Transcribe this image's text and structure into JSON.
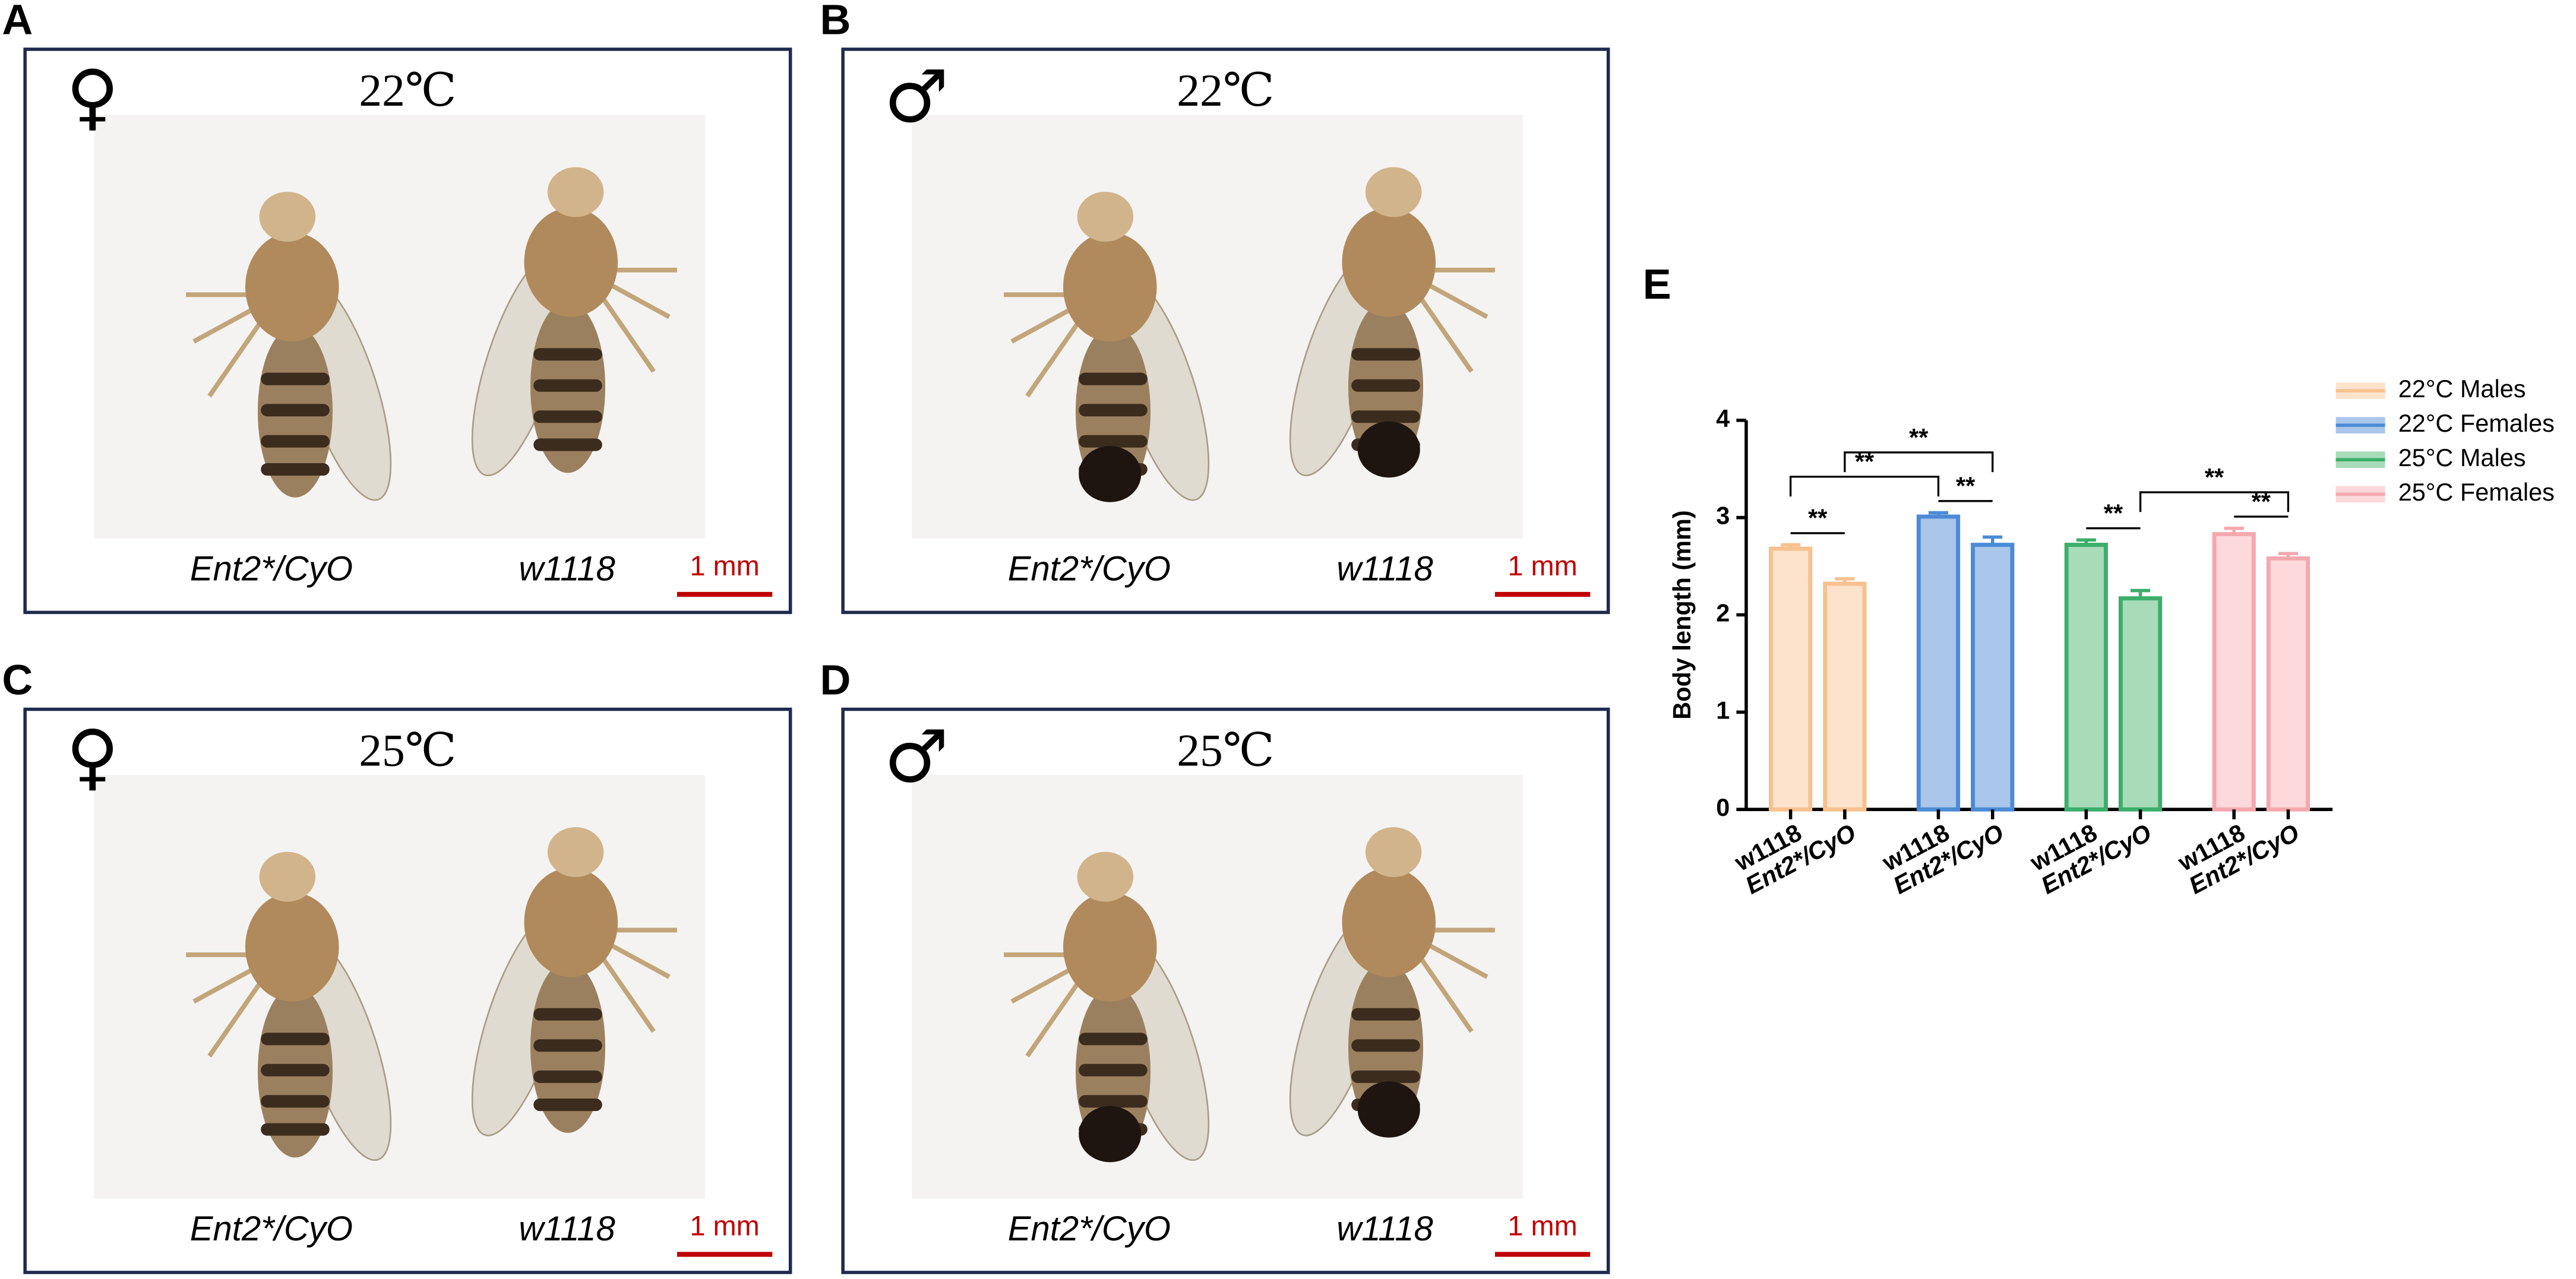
{
  "panels": [
    {
      "letter": "A",
      "sex": "♀",
      "temperature": "22℃",
      "genotypes": [
        "Ent2*/CyO",
        "w1118"
      ],
      "scale": "1 mm"
    },
    {
      "letter": "B",
      "sex": "♂",
      "temperature": "22℃",
      "genotypes": [
        "Ent2*/CyO",
        "w1118"
      ],
      "scale": "1 mm"
    },
    {
      "letter": "C",
      "sex": "♀",
      "temperature": "25℃",
      "genotypes": [
        "Ent2*/CyO",
        "w1118"
      ],
      "scale": "1 mm"
    },
    {
      "letter": "D",
      "sex": "♂",
      "temperature": "25℃",
      "genotypes": [
        "Ent2*/CyO",
        "w1118"
      ],
      "scale": "1 mm"
    }
  ],
  "chart_data": {
    "type": "bar",
    "panel_letter": "E",
    "y_label": "Body length (mm)",
    "categories": [
      "w1118",
      "Ent2*/CyO"
    ],
    "series": [
      {
        "name": "22°C Males",
        "color": "#fde3cb",
        "edge": "#f7c18e",
        "values": [
          2.68,
          2.32
        ],
        "errors": [
          0.04,
          0.05
        ]
      },
      {
        "name": "22°C Females",
        "color": "#aac6ea",
        "edge": "#4b8bd6",
        "values": [
          3.01,
          2.72
        ],
        "errors": [
          0.04,
          0.08
        ]
      },
      {
        "name": "25°C Males",
        "color": "#a8dbb8",
        "edge": "#3cae6b",
        "values": [
          2.72,
          2.17
        ],
        "errors": [
          0.05,
          0.08
        ]
      },
      {
        "name": "25°C Females",
        "color": "#fdd9db",
        "edge": "#f4a8ae",
        "values": [
          2.83,
          2.58
        ],
        "errors": [
          0.06,
          0.05
        ]
      }
    ],
    "ylim": [
      0,
      4
    ],
    "yticks": [
      0,
      1,
      2,
      3,
      4
    ],
    "legend": "right",
    "annotations": [
      {
        "label": "**",
        "from": 0,
        "to": 1
      },
      {
        "label": "**",
        "from": 2,
        "to": 3
      },
      {
        "label": "**",
        "from": 4,
        "to": 5
      },
      {
        "label": "**",
        "from": 6,
        "to": 7
      },
      {
        "label": "**",
        "from": 0,
        "to": 2
      },
      {
        "label": "**",
        "from": 1,
        "to": 3
      },
      {
        "label": "**",
        "from": 5,
        "to": 7
      }
    ]
  }
}
